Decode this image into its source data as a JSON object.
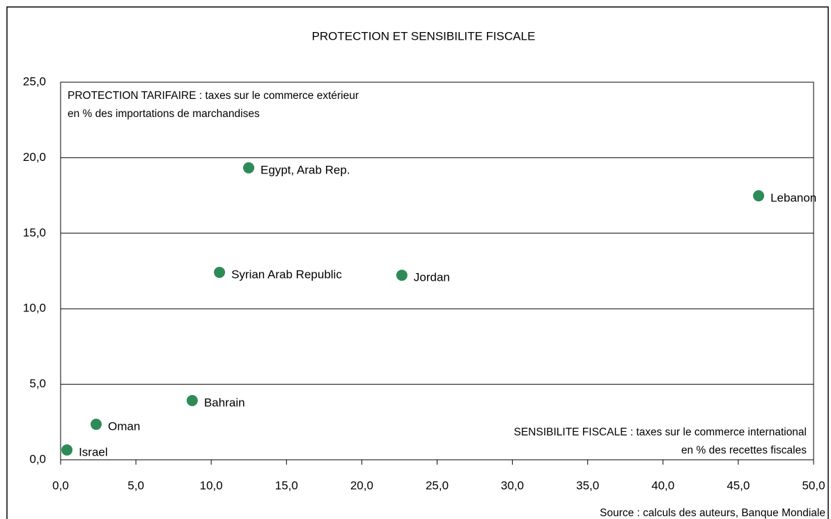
{
  "chart_data": {
    "type": "scatter",
    "title": "PROTECTION ET SENSIBILITE FISCALE",
    "y_axis_label": [
      "PROTECTION TARIFAIRE : taxes sur le commerce extérieur",
      "en % des importations de marchandises"
    ],
    "x_axis_label": [
      "SENSIBILITE FISCALE : taxes sur le commerce international",
      "en % des recettes fiscales"
    ],
    "source": "Source : calculs des auteurs, Banque Mondiale",
    "labels": [
      "Israel",
      "Oman",
      "Bahrain",
      "Syrian Arab Republic",
      "Egypt, Arab Rep.",
      "Jordan",
      "Lebanon"
    ],
    "x": [
      0.42,
      2.36,
      8.74,
      10.55,
      12.49,
      22.66,
      46.35
    ],
    "values": [
      0.65,
      2.35,
      3.92,
      12.41,
      19.33,
      12.22,
      17.48
    ],
    "color": "#2e8b57",
    "xlim": [
      0,
      50
    ],
    "ylim": [
      0,
      25
    ],
    "xticks": [
      {
        "value": 0,
        "label": "0,0"
      },
      {
        "value": 5,
        "label": "5,0"
      },
      {
        "value": 10,
        "label": "10,0"
      },
      {
        "value": 15,
        "label": "15,0"
      },
      {
        "value": 20,
        "label": "20,0"
      },
      {
        "value": 25,
        "label": "25,0"
      },
      {
        "value": 30,
        "label": "30,0"
      },
      {
        "value": 35,
        "label": "35,0"
      },
      {
        "value": 40,
        "label": "40,0"
      },
      {
        "value": 45,
        "label": "45,0"
      },
      {
        "value": 50,
        "label": "50,0"
      }
    ],
    "yticks": [
      {
        "value": 0,
        "label": "0,0"
      },
      {
        "value": 5,
        "label": "5,0"
      },
      {
        "value": 10,
        "label": "10,0"
      },
      {
        "value": 15,
        "label": "15,0"
      },
      {
        "value": 20,
        "label": "20,0"
      },
      {
        "value": 25,
        "label": "25,0"
      }
    ],
    "grid": true
  }
}
